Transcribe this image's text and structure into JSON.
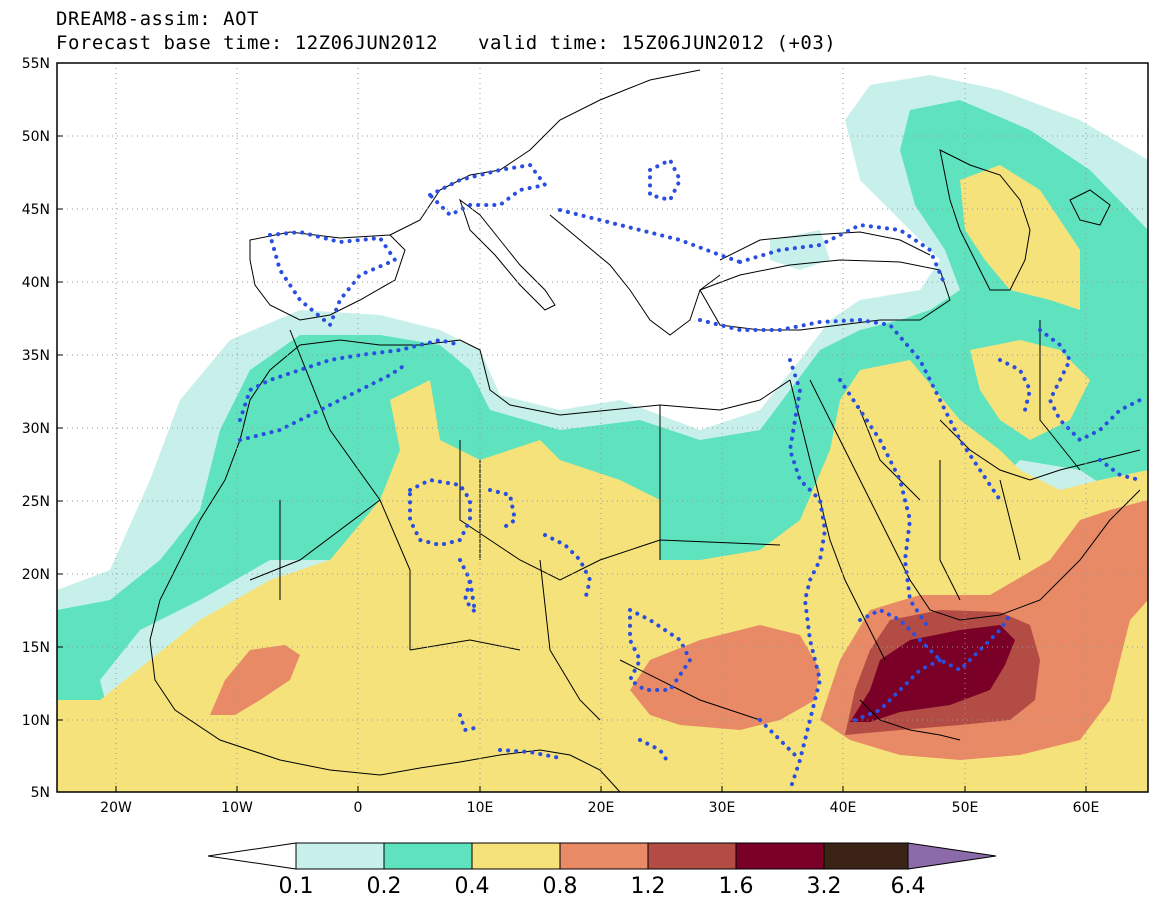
{
  "header": {
    "title": "DREAM8-assim: AOT",
    "base_time_label": "Forecast base time: 12Z06JUN2012",
    "valid_time_label": "valid time: 15Z06JUN2012 (+03)"
  },
  "map": {
    "lat_labels": [
      "55N",
      "50N",
      "45N",
      "40N",
      "35N",
      "30N",
      "25N",
      "20N",
      "15N",
      "10N",
      "5N"
    ],
    "lon_labels": [
      "20W",
      "10W",
      "0",
      "10E",
      "20E",
      "30E",
      "40E",
      "50E",
      "60E"
    ]
  },
  "colorbar": {
    "levels": [
      "0.1",
      "0.2",
      "0.4",
      "0.8",
      "1.2",
      "1.6",
      "3.2",
      "6.4"
    ],
    "colors": [
      "#ffffff",
      "#c8f0ea",
      "#5fe3bf",
      "#f5e27a",
      "#e98a67",
      "#b34c44",
      "#7a0028",
      "#3b2416",
      "#8a6aa9"
    ]
  }
}
